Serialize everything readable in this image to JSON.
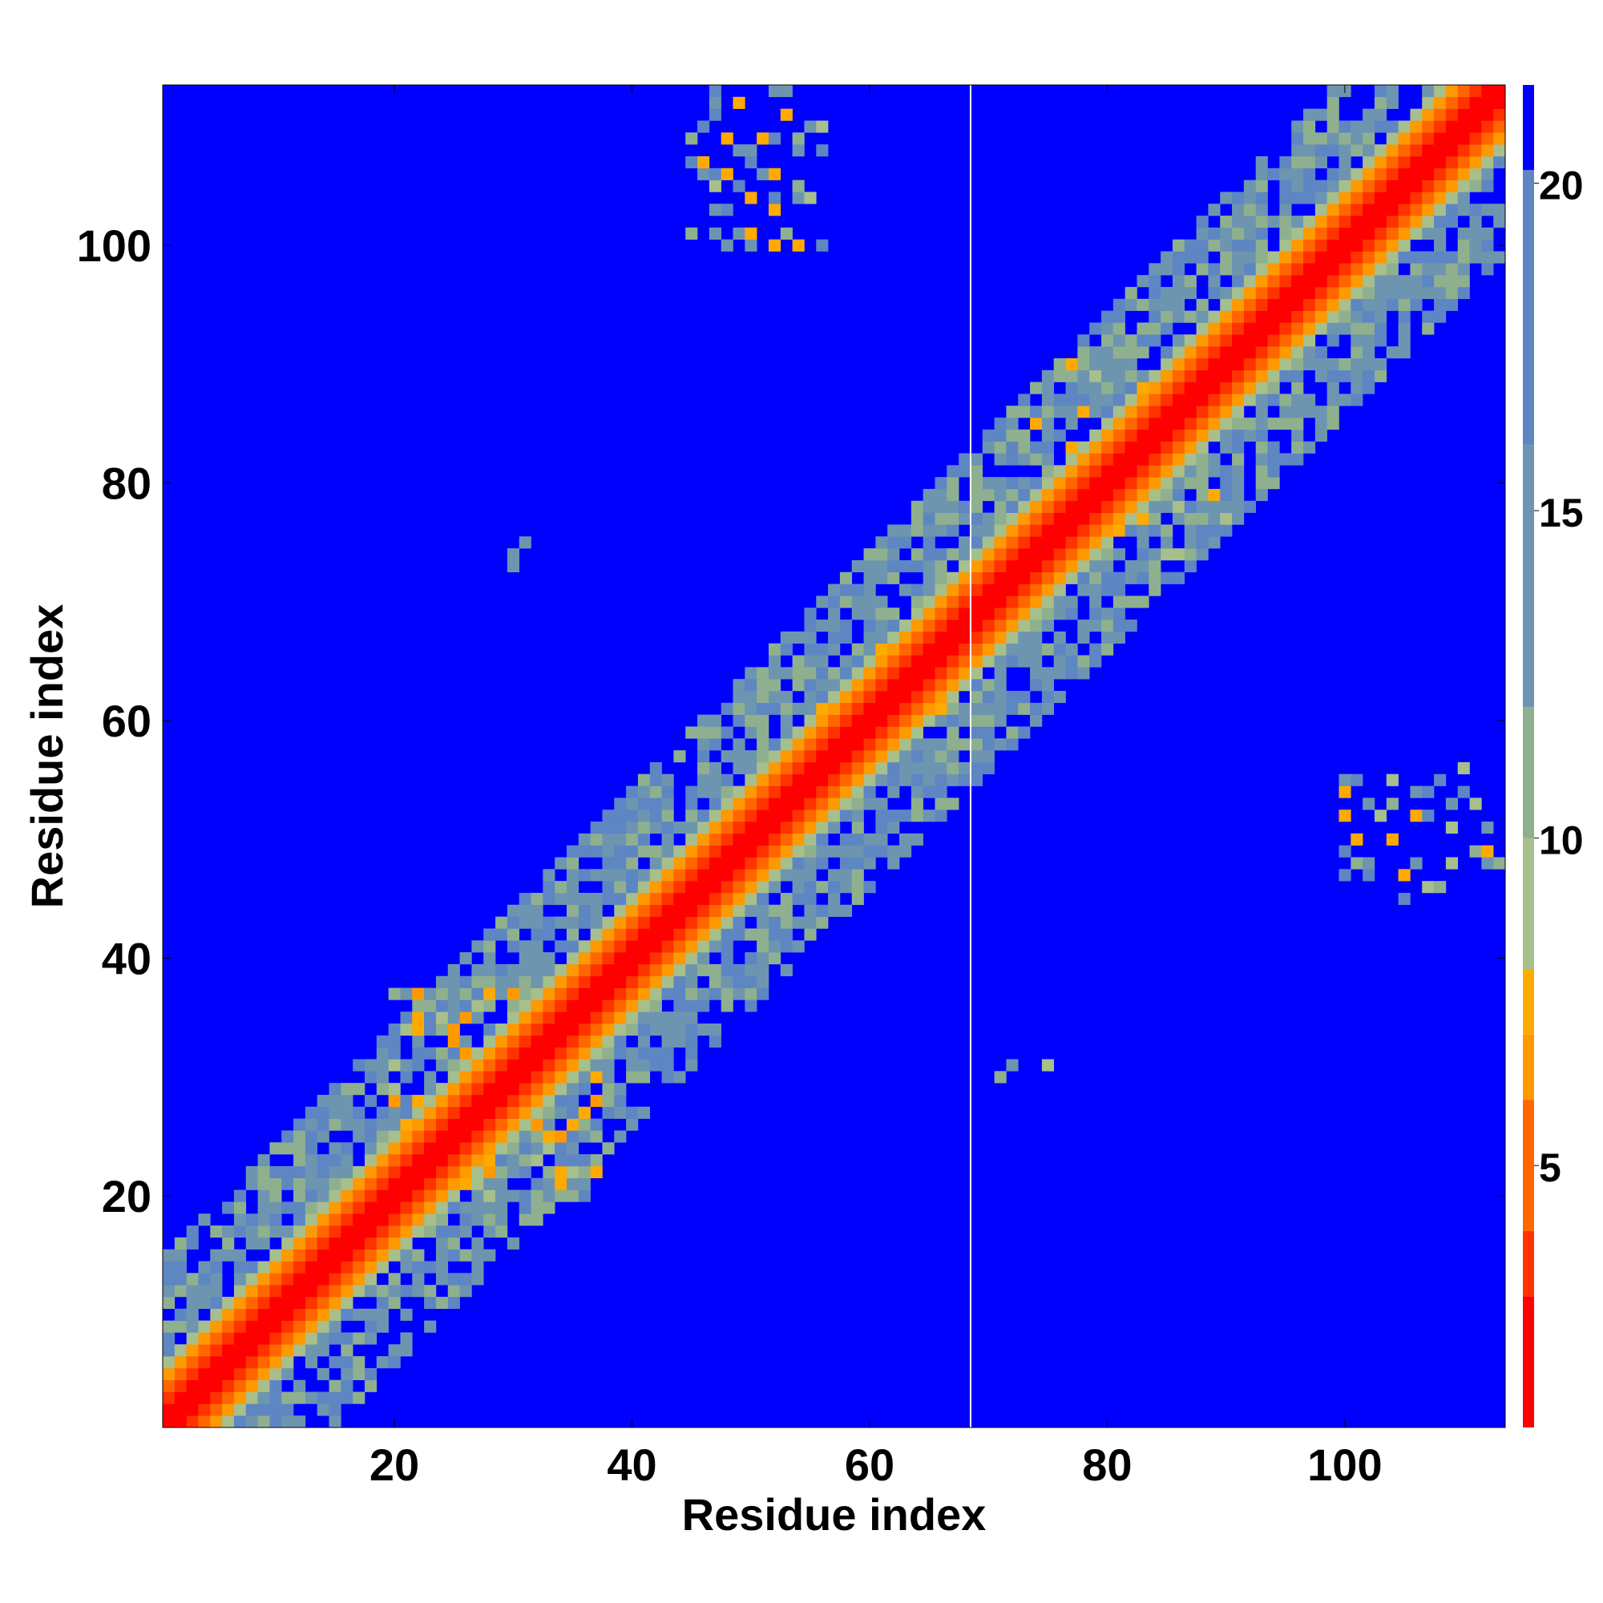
{
  "chart_data": {
    "type": "heatmap",
    "title": "",
    "xlabel": "Residue index",
    "ylabel": "Residue index",
    "xlim": [
      0.5,
      113.5
    ],
    "ylim": [
      0.5,
      113.5
    ],
    "n_residues": 113,
    "x_ticks": [
      20,
      40,
      60,
      80,
      100
    ],
    "y_ticks": [
      20,
      40,
      60,
      80,
      100
    ],
    "value_range": [
      1,
      21.5
    ],
    "colorbar_ticks": [
      5,
      10,
      15,
      20
    ],
    "colorbar_colors": [
      "#ff0000",
      "#ff3300",
      "#ff6600",
      "#ff9900",
      "#ffaa00",
      "#a7bf8a",
      "#8fb08f",
      "#6e95b0",
      "#5e86c2",
      "#0000ff"
    ],
    "colorbar_bounds": [
      1,
      3,
      4,
      6,
      7,
      8,
      10,
      12,
      16,
      20.2,
      21.5
    ],
    "background_value": 21.5,
    "gap_column": 68.5,
    "distance_model": {
      "diagonal": "value rises roughly 1.4 per residue of separation from the diagonal",
      "contact_regions": [
        {
          "x": [
            20,
            37
          ],
          "y": [
            20,
            37
          ],
          "min_value": 6
        },
        {
          "x": [
            20,
            37
          ],
          "y": [
            27,
            37
          ],
          "min_value": 7
        },
        {
          "x": [
            47,
            53
          ],
          "y": [
            100,
            113
          ],
          "min_value": 7
        },
        {
          "x": [
            100,
            110
          ],
          "y": [
            45,
            56
          ],
          "min_value": 7
        },
        {
          "x": [
            76,
            88
          ],
          "y": [
            74,
            90
          ],
          "min_value": 7
        },
        {
          "x": [
            55,
            66
          ],
          "y": [
            55,
            66
          ],
          "min_value": 7
        },
        {
          "x": [
            70,
            76
          ],
          "y": [
            28,
            31
          ],
          "min_value": 7
        }
      ]
    }
  }
}
